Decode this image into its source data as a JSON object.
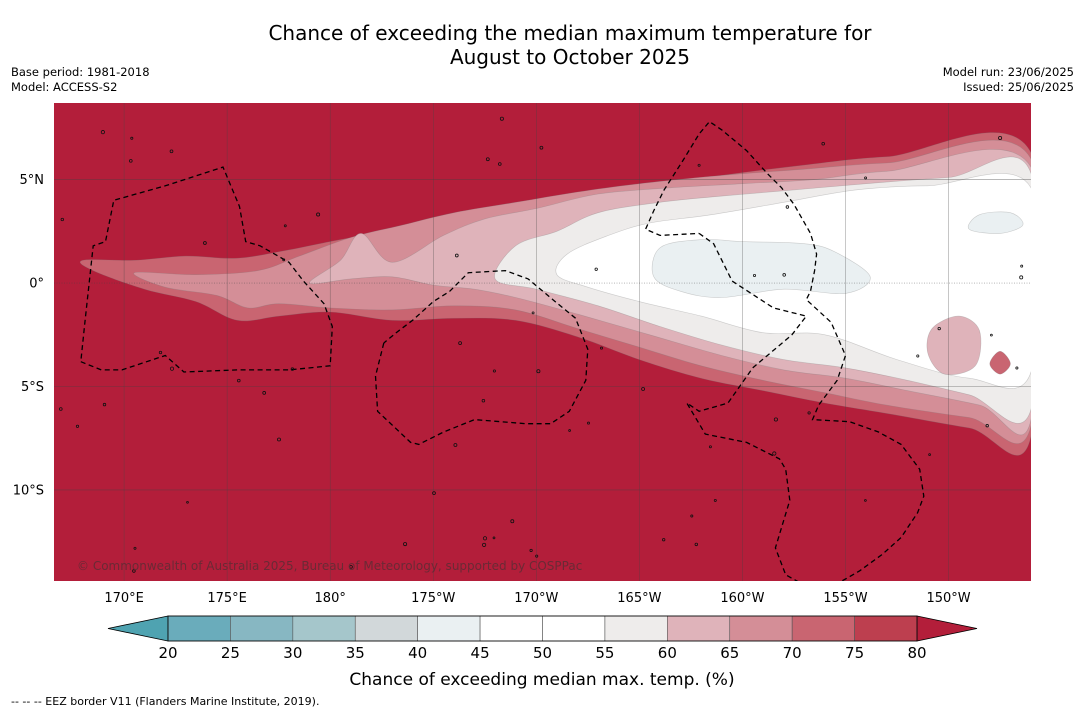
{
  "header": {
    "title_line1": "Chance of exceeding the median maximum temperature for",
    "title_line2": "August to October 2025",
    "base_period": "Base period: 1981-2018",
    "model": "Model: ACCESS-S2",
    "model_run": "Model run: 23/06/2025",
    "issued": "Issued: 25/06/2025"
  },
  "copyright": "© Commonwealth of Australia 2025, Bureau of Meteorology, supported by COSPPac",
  "footnote": "--  --  -- EEZ border V11 (Flanders Marine Institute, 2019).",
  "chart_data": {
    "type": "heatmap",
    "title": "Chance of exceeding the median maximum temperature for August to October 2025",
    "xlabel": "",
    "ylabel": "",
    "x_ticks": [
      {
        "lon": 170,
        "label": "170°E"
      },
      {
        "lon": 175,
        "label": "175°E"
      },
      {
        "lon": 180,
        "label": "180°"
      },
      {
        "lon": 185,
        "label": "175°W"
      },
      {
        "lon": 190,
        "label": "170°W"
      },
      {
        "lon": 195,
        "label": "165°W"
      },
      {
        "lon": 200,
        "label": "160°W"
      },
      {
        "lon": 205,
        "label": "155°W"
      },
      {
        "lon": 210,
        "label": "150°W"
      }
    ],
    "y_ticks": [
      {
        "lat": 5,
        "label": "5°N"
      },
      {
        "lat": 0,
        "label": "0°"
      },
      {
        "lat": -5,
        "label": "5°S"
      },
      {
        "lat": -10,
        "label": "10°S"
      }
    ],
    "lon_range": [
      166.6,
      214.0
    ],
    "lat_range": [
      -14.4,
      8.7
    ],
    "colorbar": {
      "label": "Chance of exceeding median max. temp. (%)",
      "ticks": [
        20,
        25,
        30,
        35,
        40,
        45,
        50,
        55,
        60,
        65,
        70,
        75,
        80
      ],
      "colors": [
        "#6aacbb",
        "#87b7c2",
        "#a5c6cb",
        "#d2d8da",
        "#eaf0f2",
        "#ffffff",
        "#ffffff",
        "#eeeceb",
        "#dfb3ba",
        "#d48e97",
        "#c96571",
        "#bd3f4f"
      ],
      "under_color": "#4fa3b1",
      "over_color": "#b31e3a"
    },
    "bands": [
      {
        "level": 60,
        "color": "#c96571",
        "points": [
          [
            175.5,
            1.2
          ],
          [
            178,
            1.6
          ],
          [
            180.5,
            2.1
          ],
          [
            184,
            2.7
          ],
          [
            188,
            3.4
          ],
          [
            191,
            4.0
          ],
          [
            195,
            4.6
          ],
          [
            199,
            5.2
          ],
          [
            203,
            5.7
          ],
          [
            207,
            6.1
          ],
          [
            214,
            6.3
          ],
          [
            214,
            -7.4
          ],
          [
            211,
            -7.0
          ],
          [
            207,
            -6.3
          ],
          [
            204,
            -5.8
          ],
          [
            201,
            -5.2
          ],
          [
            198,
            -4.6
          ],
          [
            195,
            -3.7
          ],
          [
            192,
            -2.6
          ],
          [
            189,
            -1.8
          ],
          [
            186,
            -1.7
          ],
          [
            183,
            -1.8
          ],
          [
            180,
            -1.4
          ],
          [
            177.5,
            -1.6
          ],
          [
            175.5,
            -1.8
          ],
          [
            173.5,
            -0.9
          ],
          [
            171,
            -0.3
          ],
          [
            168.5,
            0.6
          ],
          [
            168,
            1.1
          ],
          [
            170.5,
            1.1
          ],
          [
            173,
            1.3
          ]
        ]
      },
      {
        "level": 70,
        "color": "#d48e97",
        "points": [
          [
            170.5,
            0.5
          ],
          [
            173.5,
            0.4
          ],
          [
            176.5,
            0.6
          ],
          [
            178.5,
            1.3
          ],
          [
            181,
            2.2
          ],
          [
            183.5,
            2.8
          ],
          [
            186,
            3.4
          ],
          [
            189,
            3.9
          ],
          [
            192,
            4.4
          ],
          [
            195,
            4.8
          ],
          [
            199,
            5.2
          ],
          [
            203,
            5.5
          ],
          [
            207,
            5.8
          ],
          [
            214,
            6.0
          ],
          [
            214,
            -6.9
          ],
          [
            211,
            -6.5
          ],
          [
            207,
            -5.9
          ],
          [
            204,
            -5.3
          ],
          [
            201,
            -4.7
          ],
          [
            198,
            -4.0
          ],
          [
            195,
            -3.1
          ],
          [
            192,
            -2.2
          ],
          [
            189,
            -1.3
          ],
          [
            186,
            -1.1
          ],
          [
            183,
            -1.3
          ],
          [
            180,
            -1.2
          ],
          [
            177.5,
            -1.0
          ],
          [
            176,
            -1.2
          ],
          [
            174.5,
            -0.6
          ],
          [
            172,
            -0.2
          ]
        ]
      },
      {
        "level": 75,
        "color": "#dfb3ba",
        "points": [
          [
            180.5,
            1.1
          ],
          [
            181.5,
            2.4
          ],
          [
            183,
            1.0
          ],
          [
            185.5,
            2.3
          ],
          [
            187.5,
            3.1
          ],
          [
            190,
            3.6
          ],
          [
            193,
            4.3
          ],
          [
            196.5,
            4.6
          ],
          [
            200,
            4.8
          ],
          [
            203.5,
            5.0
          ],
          [
            207,
            5.4
          ],
          [
            214,
            5.6
          ],
          [
            214,
            -6.6
          ],
          [
            211.5,
            -5.9
          ],
          [
            208,
            -5.2
          ],
          [
            205,
            -4.6
          ],
          [
            202,
            -4.2
          ],
          [
            199,
            -3.5
          ],
          [
            195.5,
            -2.5
          ],
          [
            192,
            -1.5
          ],
          [
            189,
            -0.7
          ],
          [
            187,
            -0.3
          ],
          [
            185,
            -0.1
          ],
          [
            183,
            0.3
          ],
          [
            181,
            0.2
          ],
          [
            179,
            0.0
          ]
        ]
      },
      {
        "level": 80,
        "color": "#eeeceb",
        "points": [
          [
            189,
            1.8
          ],
          [
            191,
            2.5
          ],
          [
            193,
            3.4
          ],
          [
            196,
            3.9
          ],
          [
            199,
            4.2
          ],
          [
            202.5,
            4.5
          ],
          [
            206,
            4.8
          ],
          [
            210,
            5.1
          ],
          [
            214,
            5.3
          ],
          [
            214,
            -6.1
          ],
          [
            211,
            -5.4
          ],
          [
            208,
            -4.7
          ],
          [
            205,
            -4.1
          ],
          [
            202,
            -3.7
          ],
          [
            199,
            -3.0
          ],
          [
            196,
            -2.1
          ],
          [
            193,
            -1.1
          ],
          [
            190,
            -0.3
          ],
          [
            188,
            0.2
          ]
        ]
      },
      {
        "level": 85,
        "color": "#ffffff",
        "points": [
          [
            191.5,
            1.4
          ],
          [
            193.5,
            2.3
          ],
          [
            195.5,
            2.9
          ],
          [
            198.5,
            3.3
          ],
          [
            202,
            3.9
          ],
          [
            205.5,
            4.5
          ],
          [
            209,
            4.7
          ],
          [
            214,
            4.6
          ],
          [
            214,
            -4.3
          ],
          [
            211,
            -4.6
          ],
          [
            207.5,
            -3.7
          ],
          [
            204,
            -2.5
          ],
          [
            201,
            -2.4
          ],
          [
            198,
            -1.6
          ],
          [
            195,
            -0.9
          ],
          [
            192.5,
            -0.2
          ],
          [
            191,
            0.4
          ]
        ]
      },
      {
        "level": 90,
        "color": "#eaf0f2",
        "points": [
          [
            196,
            1.7
          ],
          [
            198,
            2.1
          ],
          [
            200,
            2.0
          ],
          [
            203,
            1.9
          ],
          [
            204.5,
            1.5
          ],
          [
            206.2,
            0.3
          ],
          [
            205,
            -0.5
          ],
          [
            202,
            -0.3
          ],
          [
            199,
            -0.7
          ],
          [
            197,
            -0.4
          ],
          [
            195.7,
            0.3
          ]
        ]
      },
      {
        "level": 90,
        "color": "#eaf0f2",
        "points": [
          [
            211.5,
            3.3
          ],
          [
            213,
            3.4
          ],
          [
            213.6,
            2.8
          ],
          [
            212.5,
            2.4
          ],
          [
            211,
            2.6
          ]
        ]
      },
      {
        "level": 78,
        "color": "#dfb3ba",
        "points": [
          [
            209.2,
            -2.2
          ],
          [
            210.5,
            -1.6
          ],
          [
            211.5,
            -2.3
          ],
          [
            211.3,
            -4.0
          ],
          [
            209.8,
            -4.4
          ],
          [
            209,
            -3.4
          ]
        ]
      },
      {
        "level": 60,
        "color": "#c96571",
        "points": [
          [
            212.5,
            -3.3
          ],
          [
            213,
            -3.9
          ],
          [
            212.5,
            -4.4
          ],
          [
            212,
            -3.9
          ]
        ]
      }
    ],
    "eez_borders": [
      [
        [
          167.9,
          -3.8
        ],
        [
          168.9,
          -4.2
        ],
        [
          169.9,
          -4.2
        ],
        [
          172,
          -3.5
        ],
        [
          172.9,
          -4.3
        ],
        [
          175.5,
          -4.2
        ],
        [
          178,
          -4.2
        ],
        [
          180,
          -4.0
        ],
        [
          180.1,
          -2.1
        ],
        [
          179.7,
          -1.0
        ],
        [
          178.7,
          0.1
        ],
        [
          178,
          1.0
        ],
        [
          176.6,
          1.8
        ],
        [
          175.9,
          2.0
        ],
        [
          175.6,
          3.7
        ],
        [
          174.8,
          5.6
        ],
        [
          172,
          4.7
        ],
        [
          169.5,
          4.0
        ],
        [
          169.1,
          2.0
        ],
        [
          168.5,
          1.8
        ],
        [
          168.1,
          -1.9
        ],
        [
          167.9,
          -3.8
        ]
      ],
      [
        [
          182.6,
          -2.9
        ],
        [
          182.2,
          -4.5
        ],
        [
          182.3,
          -6.2
        ],
        [
          183.9,
          -7.7
        ],
        [
          184.3,
          -7.8
        ],
        [
          185.5,
          -7.2
        ],
        [
          187,
          -6.6
        ],
        [
          189.5,
          -6.8
        ],
        [
          190.7,
          -6.8
        ],
        [
          191.6,
          -6.2
        ],
        [
          192.4,
          -4.7
        ],
        [
          192.5,
          -3.2
        ],
        [
          191.9,
          -1.7
        ],
        [
          190.8,
          -0.8
        ],
        [
          189.6,
          0.2
        ],
        [
          188.5,
          0.6
        ],
        [
          186.7,
          0.5
        ],
        [
          185.8,
          -0.4
        ],
        [
          185,
          -0.9
        ],
        [
          184,
          -1.8
        ],
        [
          183.2,
          -2.4
        ],
        [
          182.6,
          -2.9
        ]
      ],
      [
        [
          197.9,
          2.4
        ],
        [
          198.6,
          1.9
        ],
        [
          199.5,
          0.1
        ],
        [
          201.5,
          -1.2
        ],
        [
          203.1,
          -1.6
        ],
        [
          202.4,
          -2.5
        ],
        [
          200.5,
          -4.1
        ],
        [
          199.3,
          -5.8
        ],
        [
          197.9,
          -6.2
        ],
        [
          197.3,
          -5.8
        ],
        [
          198.2,
          -7.3
        ],
        [
          200.2,
          -7.7
        ],
        [
          201.8,
          -8.5
        ],
        [
          202.1,
          -9.0
        ],
        [
          202.3,
          -10.5
        ],
        [
          201.6,
          -12.8
        ],
        [
          202.1,
          -14.1
        ],
        [
          203,
          -14.6
        ],
        [
          204.3,
          -14.7
        ],
        [
          205.7,
          -13.9
        ],
        [
          206.8,
          -13.1
        ],
        [
          207.7,
          -12.3
        ],
        [
          208.5,
          -11.1
        ],
        [
          208.8,
          -10.3
        ],
        [
          208.6,
          -9.0
        ],
        [
          207.7,
          -7.8
        ],
        [
          206.6,
          -7.2
        ],
        [
          205.2,
          -6.7
        ],
        [
          203.4,
          -6.6
        ],
        [
          203.7,
          -5.9
        ],
        [
          204.6,
          -4.7
        ],
        [
          205,
          -3.5
        ],
        [
          204.3,
          -1.9
        ],
        [
          203.1,
          -0.8
        ],
        [
          203.3,
          -0.4
        ],
        [
          203.5,
          0.6
        ],
        [
          203.6,
          1.4
        ],
        [
          203.3,
          2.4
        ],
        [
          202.5,
          3.8
        ],
        [
          201.9,
          4.6
        ],
        [
          201.2,
          5.3
        ],
        [
          200.2,
          6.4
        ],
        [
          199,
          7.4
        ],
        [
          198.4,
          7.8
        ],
        [
          197.9,
          7.2
        ],
        [
          197.1,
          5.9
        ],
        [
          196.2,
          4.5
        ],
        [
          195.7,
          3.5
        ],
        [
          195.3,
          2.6
        ],
        [
          196,
          2.3
        ],
        [
          197.9,
          2.4
        ]
      ]
    ]
  }
}
